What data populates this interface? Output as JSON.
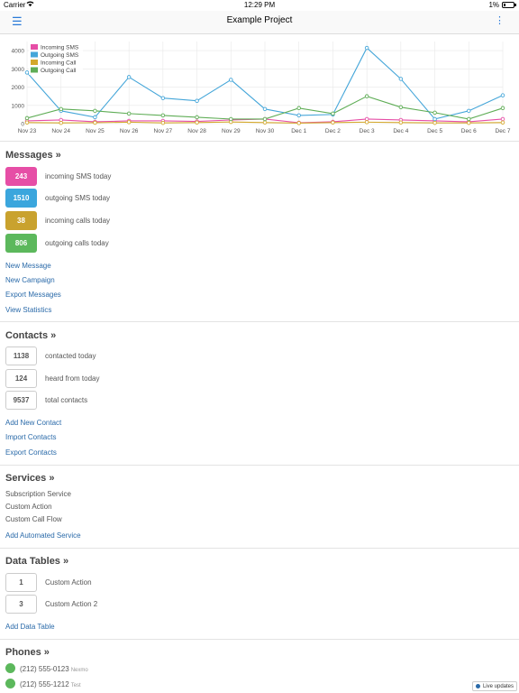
{
  "status_bar": {
    "carrier": "Carrier",
    "time": "12:29 PM",
    "battery": "1%"
  },
  "nav": {
    "title": "Example Project"
  },
  "chart_data": {
    "type": "line",
    "categories": [
      "Nov 23",
      "Nov 24",
      "Nov 25",
      "Nov 26",
      "Nov 27",
      "Nov 28",
      "Nov 29",
      "Nov 30",
      "Dec 1",
      "Dec 2",
      "Dec 3",
      "Dec 4",
      "Dec 5",
      "Dec 6",
      "Dec 7"
    ],
    "ylim": [
      0,
      4500
    ],
    "yticks": [
      "0",
      "1000",
      "2000",
      "3000",
      "4000"
    ],
    "legend_position": "top-left",
    "series": [
      {
        "name": "Incoming SMS",
        "color": "#e64ea6",
        "values": [
          150,
          200,
          100,
          150,
          150,
          120,
          200,
          250,
          50,
          100,
          250,
          200,
          150,
          100,
          250
        ]
      },
      {
        "name": "Outgoing SMS",
        "color": "#45a6d9",
        "values": [
          2800,
          700,
          350,
          2550,
          1400,
          1250,
          2400,
          800,
          450,
          500,
          4150,
          2450,
          250,
          700,
          1550
        ]
      },
      {
        "name": "Incoming Call",
        "color": "#d4a82c",
        "values": [
          60,
          40,
          50,
          80,
          40,
          60,
          90,
          60,
          30,
          60,
          80,
          60,
          40,
          40,
          60
        ]
      },
      {
        "name": "Outgoing Call",
        "color": "#5fad56",
        "values": [
          300,
          800,
          700,
          550,
          450,
          350,
          250,
          250,
          850,
          550,
          1500,
          900,
          600,
          250,
          850
        ]
      }
    ]
  },
  "messages": {
    "title": "Messages »",
    "stats": [
      {
        "value": "243",
        "label": "incoming SMS today",
        "color": "#e64ea6"
      },
      {
        "value": "1510",
        "label": "outgoing SMS today",
        "color": "#3ba6dd"
      },
      {
        "value": "38",
        "label": "incoming calls today",
        "color": "#c9a22e"
      },
      {
        "value": "806",
        "label": "outgoing calls today",
        "color": "#5cb85c"
      }
    ],
    "links": [
      "New Message",
      "New Campaign",
      "Export Messages",
      "View Statistics"
    ]
  },
  "contacts": {
    "title": "Contacts »",
    "stats": [
      {
        "value": "1138",
        "label": "contacted today"
      },
      {
        "value": "124",
        "label": "heard from today"
      },
      {
        "value": "9537",
        "label": "total contacts"
      }
    ],
    "links": [
      "Add New Contact",
      "Import Contacts",
      "Export Contacts"
    ]
  },
  "services": {
    "title": "Services »",
    "items": [
      "Subscription Service",
      "Custom Action",
      "Custom Call Flow"
    ],
    "link": "Add Automated Service"
  },
  "data_tables": {
    "title": "Data Tables »",
    "stats": [
      {
        "value": "1",
        "label": "Custom Action"
      },
      {
        "value": "3",
        "label": "Custom Action 2"
      }
    ],
    "link": "Add Data Table"
  },
  "phones": {
    "title": "Phones »",
    "items": [
      {
        "number": "(212) 555-0123",
        "provider": "Nexmo"
      },
      {
        "number": "(212) 555-1212",
        "provider": "Test"
      }
    ]
  },
  "live_updates": "Live updates"
}
